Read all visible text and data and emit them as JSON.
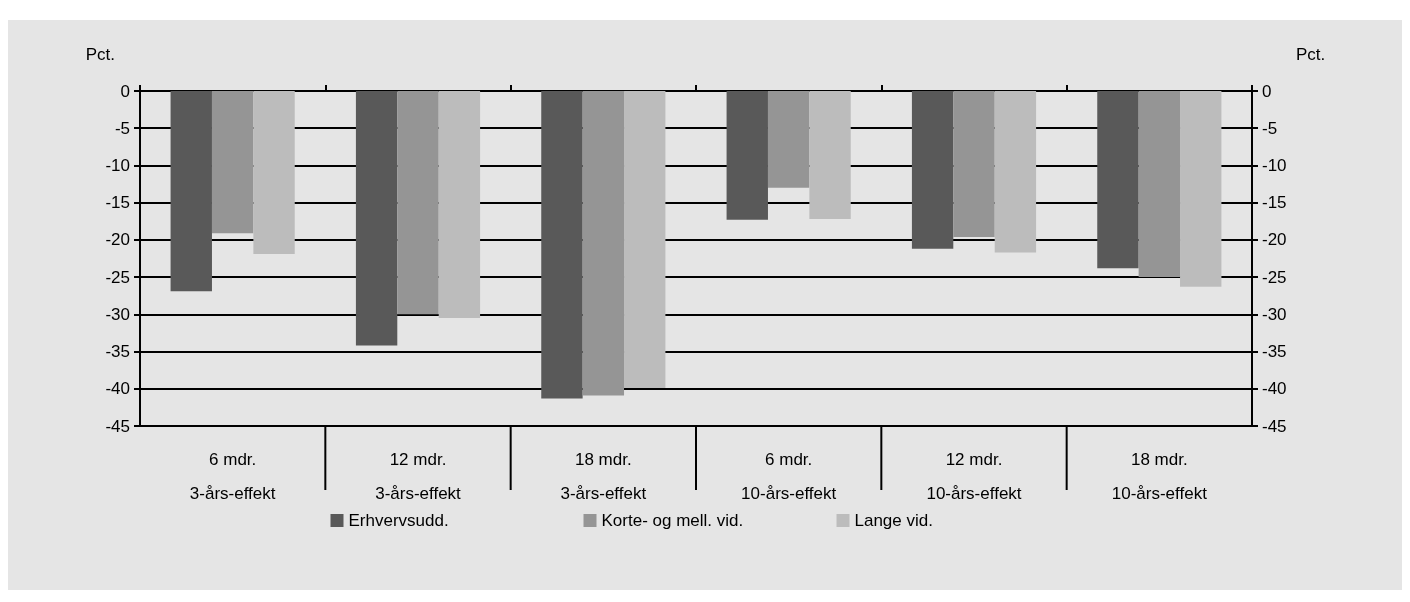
{
  "chart_data": {
    "type": "bar",
    "categories": [
      "6 mdr.\n3-års-effekt",
      "12 mdr.\n3-års-effekt",
      "18 mdr.\n3-års-effekt",
      "6 mdr.\n10-års-effekt",
      "12 mdr.\n10-års-effekt",
      "18 mdr.\n10-års-effekt"
    ],
    "series": [
      {
        "name": "Erhvervsudd.",
        "color": "#595959",
        "values": [
          -26.9,
          -34.2,
          -41.3,
          -17.3,
          -21.2,
          -23.8
        ]
      },
      {
        "name": "Korte- og mell. vid.",
        "color": "#959595",
        "values": [
          -19.1,
          -30.0,
          -40.9,
          -13.0,
          -19.6,
          -25.0
        ]
      },
      {
        "name": "Lange vid.",
        "color": "#bcbcbc",
        "values": [
          -21.9,
          -30.5,
          -39.9,
          -17.2,
          -21.7,
          -26.3
        ]
      }
    ],
    "ylabel": "Pct.",
    "y2label": "Pct.",
    "ylim": [
      -45,
      0
    ],
    "yticks": [
      -45,
      -40,
      -35,
      -30,
      -25,
      -20,
      -15,
      -10,
      -5,
      0
    ],
    "y2lim": [
      -45,
      0
    ],
    "y2ticks": [
      -45,
      -40,
      -35,
      -30,
      -25,
      -20,
      -15,
      -10,
      -5,
      0
    ],
    "grid": "y",
    "legend": "bottom"
  }
}
